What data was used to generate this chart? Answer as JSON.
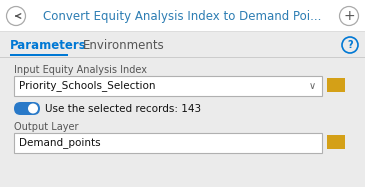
{
  "bg_color": "#ebebeb",
  "header_bg": "#ffffff",
  "title_text": "Convert Equity Analysis Index to Demand Poi...",
  "title_color": "#2d7db3",
  "title_fontsize": 8.5,
  "tab1": "Parameters",
  "tab2": "Environments",
  "tab_fontsize": 8.5,
  "tab_active_color": "#0078d4",
  "tab_inactive_color": "#555555",
  "tab_underline_color": "#0078d4",
  "label1": "Input Equity Analysis Index",
  "label_fontsize": 7,
  "label_color": "#555555",
  "dropdown_text": "Priority_Schools_Selection",
  "dropdown_bg": "#ffffff",
  "dropdown_border": "#b0b0b0",
  "dropdown_fontsize": 7.5,
  "toggle_on_color": "#2979c8",
  "toggle_text": "Use the selected records: 143",
  "toggle_fontsize": 7.5,
  "label2": "Output Layer",
  "output_text": "Demand_points",
  "output_bg": "#ffffff",
  "output_border": "#b0b0b0",
  "output_fontsize": 7.5,
  "folder_color": "#d4a017",
  "folder_dark": "#c49010",
  "circle_edge_color": "#aaaaaa",
  "arrow_color": "#555555",
  "help_color": "#0078d4",
  "sep_color": "#cccccc",
  "header_sep_color": "#dddddd"
}
